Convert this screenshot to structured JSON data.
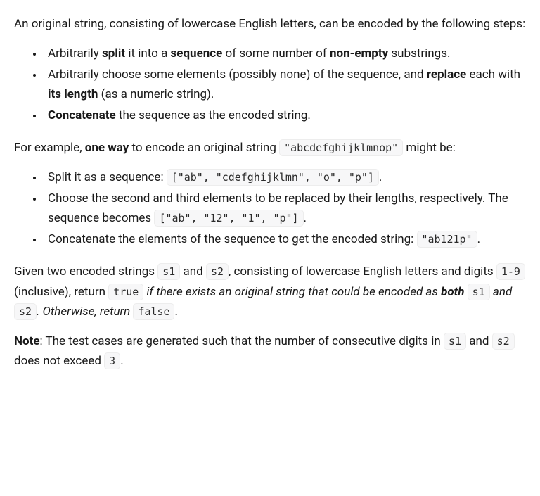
{
  "intro": {
    "text": "An original string, consisting of lowercase English letters, can be encoded by the following steps:"
  },
  "steps": [
    {
      "pre1": "Arbitrarily ",
      "b1": "split",
      "mid1": " it into a ",
      "b2": "sequence",
      "mid2": " of some number of ",
      "b3": "non-empty",
      "post": " substrings."
    },
    {
      "pre1": "Arbitrarily choose some elements (possibly none) of the sequence, and ",
      "b1": "replace",
      "mid1": " each with ",
      "b2": "its length",
      "post": " (as a numeric string)."
    },
    {
      "b1": "Concatenate",
      "post": " the sequence as the encoded string."
    }
  ],
  "example_intro": {
    "pre": "For example, ",
    "b1": "one way",
    "mid": " to encode an original string ",
    "code1": "\"abcdefghijklmnop\"",
    "post": " might be:"
  },
  "example_steps": [
    {
      "pre": "Split it as a sequence: ",
      "code1": "[\"ab\", \"cdefghijklmn\", \"o\", \"p\"]",
      "post": "."
    },
    {
      "pre": "Choose the second and third elements to be replaced by their lengths, respectively. The sequence becomes ",
      "code1": "[\"ab\", \"12\", \"1\", \"p\"]",
      "post": "."
    },
    {
      "pre": "Concatenate the elements of the sequence to get the encoded string: ",
      "code1": "\"ab121p\"",
      "post": "."
    }
  ],
  "given": {
    "pre": "Given two encoded strings ",
    "code1": "s1",
    "mid1": " and ",
    "code2": "s2",
    "mid2": ", consisting of lowercase English letters and digits ",
    "code3": "1-9",
    "mid3": " (inclusive), return ",
    "code4": "true",
    "i1_pre": " if there exists an original string that could be encoded as ",
    "i1_b": "both",
    "i1_mid": " ",
    "code5": "s1",
    "i1_and": " and ",
    "code6": "s2",
    "i1_post": ". Otherwise, return ",
    "code7": "false",
    "post": "."
  },
  "note": {
    "b1": "Note",
    "pre": ": The test cases are generated such that the number of consecutive digits in ",
    "code1": "s1",
    "mid": " and ",
    "code2": "s2",
    "post": " does not exceed ",
    "code3": "3",
    "end": "."
  }
}
